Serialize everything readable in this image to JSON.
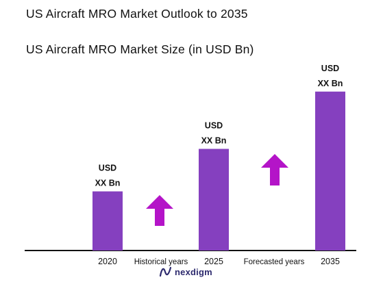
{
  "header": {
    "title": "US Aircraft MRO Market Outlook to 2035",
    "subtitle": "US Aircraft MRO Market Size (in USD Bn)"
  },
  "brand": {
    "logo_text": "nexdigm",
    "logo_color": "#2d2a6e",
    "logo_icon": "nexdigm-n-mark-icon"
  },
  "colors": {
    "bar": "#8540bf",
    "arrow": "#b414c8",
    "axis": "#111111"
  },
  "chart_data": {
    "type": "bar",
    "title": "US Aircraft MRO Market Size (in USD Bn)",
    "categories": [
      "2020",
      "2025",
      "2035"
    ],
    "values": [
      32,
      55,
      86
    ],
    "value_labels": [
      [
        "USD",
        "XX Bn"
      ],
      [
        "USD",
        "XX Bn"
      ],
      [
        "USD",
        "XX Bn"
      ]
    ],
    "ylim": [
      0,
      100
    ],
    "value_note": "relative heights only; exact values not printed",
    "period_labels": [
      "Historical years",
      "Forecasted years"
    ],
    "growth_arrows": [
      "up-arrow-icon",
      "up-arrow-icon"
    ],
    "grid": false,
    "legend": "none"
  }
}
